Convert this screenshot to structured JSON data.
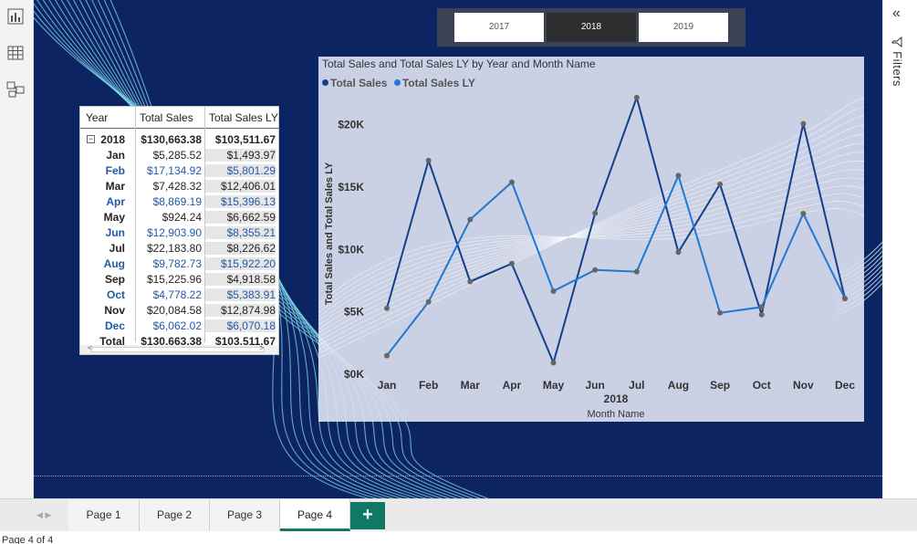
{
  "left_rail": {
    "icons": [
      "report-view-icon",
      "table-view-icon",
      "model-view-icon"
    ]
  },
  "slicer": {
    "options": [
      "2017",
      "2018",
      "2019"
    ],
    "selected": "2018"
  },
  "table": {
    "headers": [
      "Year",
      "Total Sales",
      "Total Sales LY"
    ],
    "expand_symbol": "−",
    "year_row": {
      "year": "2018",
      "sales": "$130,663.38",
      "ly": "$103,511.67"
    },
    "rows": [
      {
        "month": "Jan",
        "sales": "$5,285.52",
        "ly": "$1,493.97",
        "highlight": false
      },
      {
        "month": "Feb",
        "sales": "$17,134.92",
        "ly": "$5,801.29",
        "highlight": true
      },
      {
        "month": "Mar",
        "sales": "$7,428.32",
        "ly": "$12,406.01",
        "highlight": false
      },
      {
        "month": "Apr",
        "sales": "$8,869.19",
        "ly": "$15,396.13",
        "highlight": true
      },
      {
        "month": "May",
        "sales": "$924.24",
        "ly": "$6,662.59",
        "highlight": false
      },
      {
        "month": "Jun",
        "sales": "$12,903.90",
        "ly": "$8,355.21",
        "highlight": true
      },
      {
        "month": "Jul",
        "sales": "$22,183.80",
        "ly": "$8,226.62",
        "highlight": false
      },
      {
        "month": "Aug",
        "sales": "$9,782.73",
        "ly": "$15,922.20",
        "highlight": true
      },
      {
        "month": "Sep",
        "sales": "$15,225.96",
        "ly": "$4,918.58",
        "highlight": false
      },
      {
        "month": "Oct",
        "sales": "$4,778.22",
        "ly": "$5,383.91",
        "highlight": true
      },
      {
        "month": "Nov",
        "sales": "$20,084.58",
        "ly": "$12,874.98",
        "highlight": false
      },
      {
        "month": "Dec",
        "sales": "$6,062.02",
        "ly": "$6,070.18",
        "highlight": true
      }
    ],
    "total_row": {
      "label": "Total",
      "sales": "$130,663.38",
      "ly": "$103,511.67"
    },
    "scroll_left": "<",
    "scroll_right": ">"
  },
  "chart_data": {
    "type": "line",
    "title": "Total Sales and Total Sales LY by Year and Month Name",
    "xlabel": "Month Name",
    "x_group_label": "2018",
    "ylabel": "Total Sales and Total Sales LY",
    "categories": [
      "Jan",
      "Feb",
      "Mar",
      "Apr",
      "May",
      "Jun",
      "Jul",
      "Aug",
      "Sep",
      "Oct",
      "Nov",
      "Dec"
    ],
    "yticks": [
      0,
      5000,
      10000,
      15000,
      20000
    ],
    "ytick_labels": [
      "$0K",
      "$5K",
      "$10K",
      "$15K",
      "$20K"
    ],
    "ylim": [
      0,
      24000
    ],
    "legend_position": "top-left",
    "series": [
      {
        "name": "Total Sales",
        "color": "#12418a",
        "values": [
          5285.52,
          17134.92,
          7428.32,
          8869.19,
          924.24,
          12903.9,
          22183.8,
          9782.73,
          15225.96,
          4778.22,
          20084.58,
          6062.02
        ]
      },
      {
        "name": "Total Sales LY",
        "color": "#1f78d1",
        "values": [
          1493.97,
          5801.29,
          12406.01,
          15396.13,
          6662.59,
          8355.21,
          8226.62,
          15922.2,
          4918.58,
          5383.91,
          12874.98,
          6070.18
        ]
      }
    ]
  },
  "filters": {
    "label": "Filters",
    "collapse_glyph": "«"
  },
  "pages": {
    "tabs": [
      "Page 1",
      "Page 2",
      "Page 3",
      "Page 4"
    ],
    "active": "Page 4",
    "add_label": "+"
  },
  "status": {
    "text": "Page 4 of 4"
  },
  "colors": {
    "canvas": "#0d2463",
    "accent": "#117865",
    "wave": "#7fd6e6"
  }
}
